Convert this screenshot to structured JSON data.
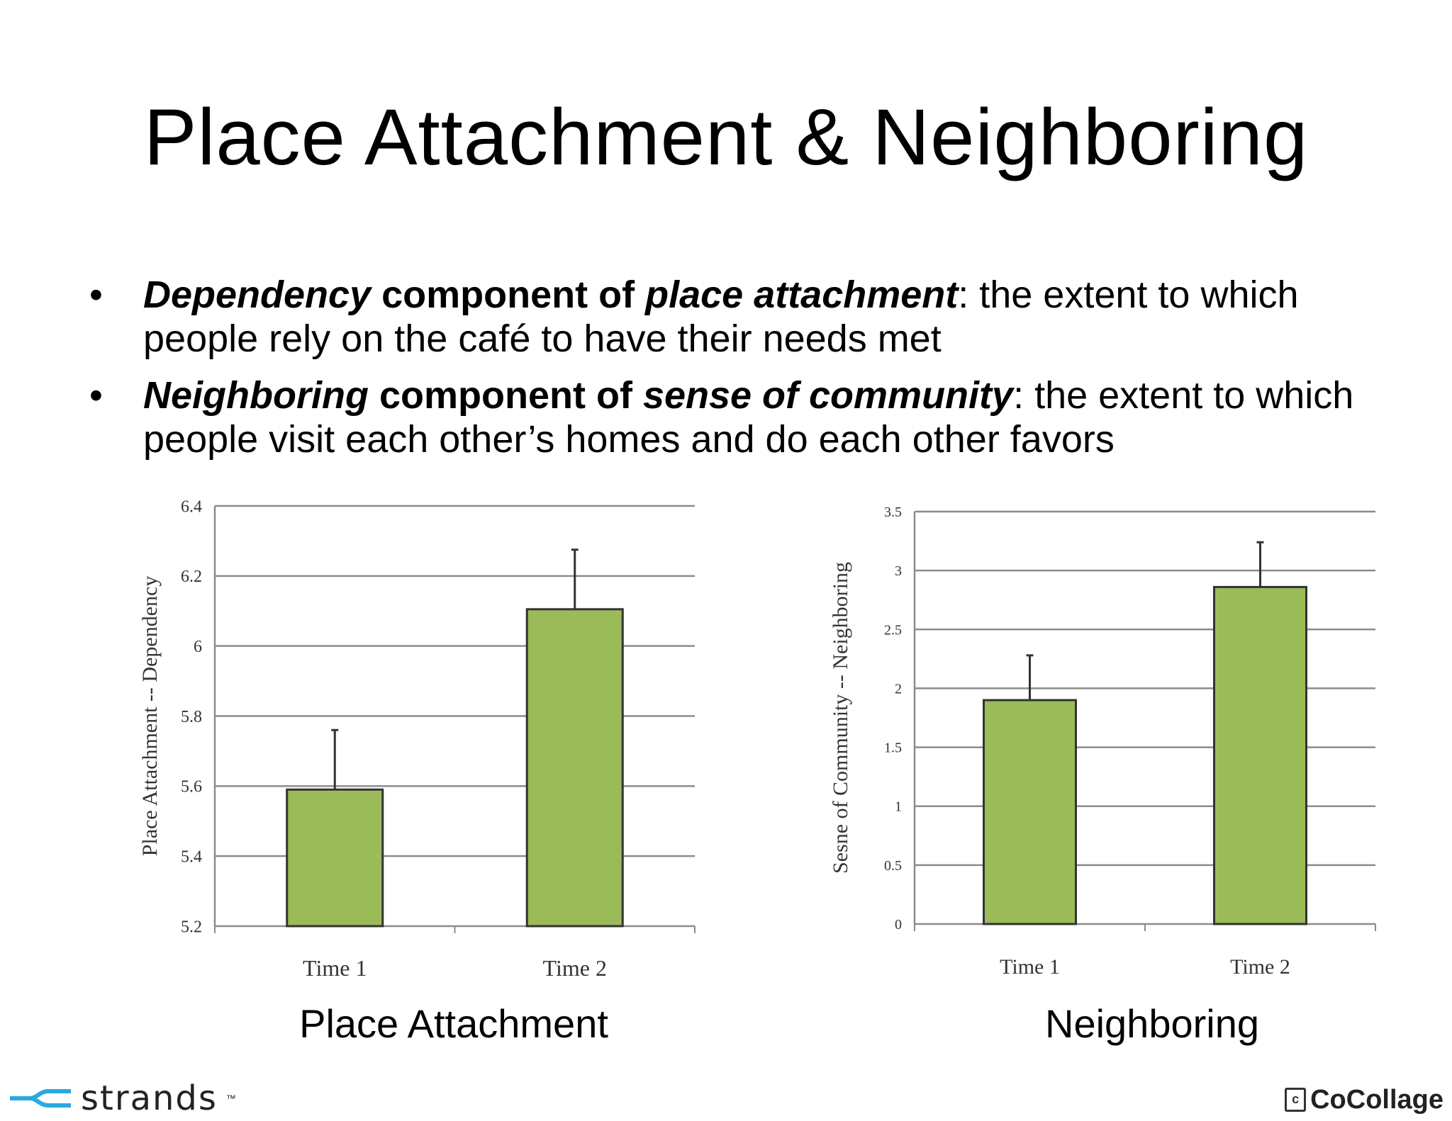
{
  "slide": {
    "title": "Place Attachment & Neighboring",
    "bullets": [
      {
        "term": "Dependency",
        "middle": " component of ",
        "concept": "place attachment",
        "definition": ": the extent to which people rely on the café to have their needs met"
      },
      {
        "term": "Neighboring",
        "middle": " component of ",
        "concept": "sense of community",
        "definition": ": the extent to which people visit each other’s homes and do each other favors"
      }
    ],
    "bullet_symbol": "•"
  },
  "captions": {
    "left": "Place Attachment",
    "right": "Neighboring"
  },
  "logos": {
    "left_name": "strands",
    "left_tm": "™",
    "right_name": "CoCollage",
    "right_badge": "c"
  },
  "chart_data": [
    {
      "type": "bar",
      "categories": [
        "Time 1",
        "Time 2"
      ],
      "values": [
        5.59,
        6.105
      ],
      "error_upper": [
        5.76,
        6.275
      ],
      "ylabel": "Place Attachment -- Dependency",
      "ylim": [
        5.2,
        6.4
      ],
      "yticks": [
        "5.2",
        "5.4",
        "5.6",
        "5.8",
        "6",
        "6.2",
        "6.4"
      ],
      "grid": true,
      "bar_color": "#9bbb59"
    },
    {
      "type": "bar",
      "categories": [
        "Time 1",
        "Time 2"
      ],
      "values": [
        1.9,
        2.86
      ],
      "error_upper": [
        2.28,
        3.24
      ],
      "ylabel": "Sesne of Community -- Neighboring",
      "ylim": [
        0,
        3.5
      ],
      "yticks": [
        "0",
        "0.5",
        "1",
        "1.5",
        "2",
        "2.5",
        "3",
        "3.5"
      ],
      "grid": true,
      "bar_color": "#9bbb59"
    }
  ]
}
